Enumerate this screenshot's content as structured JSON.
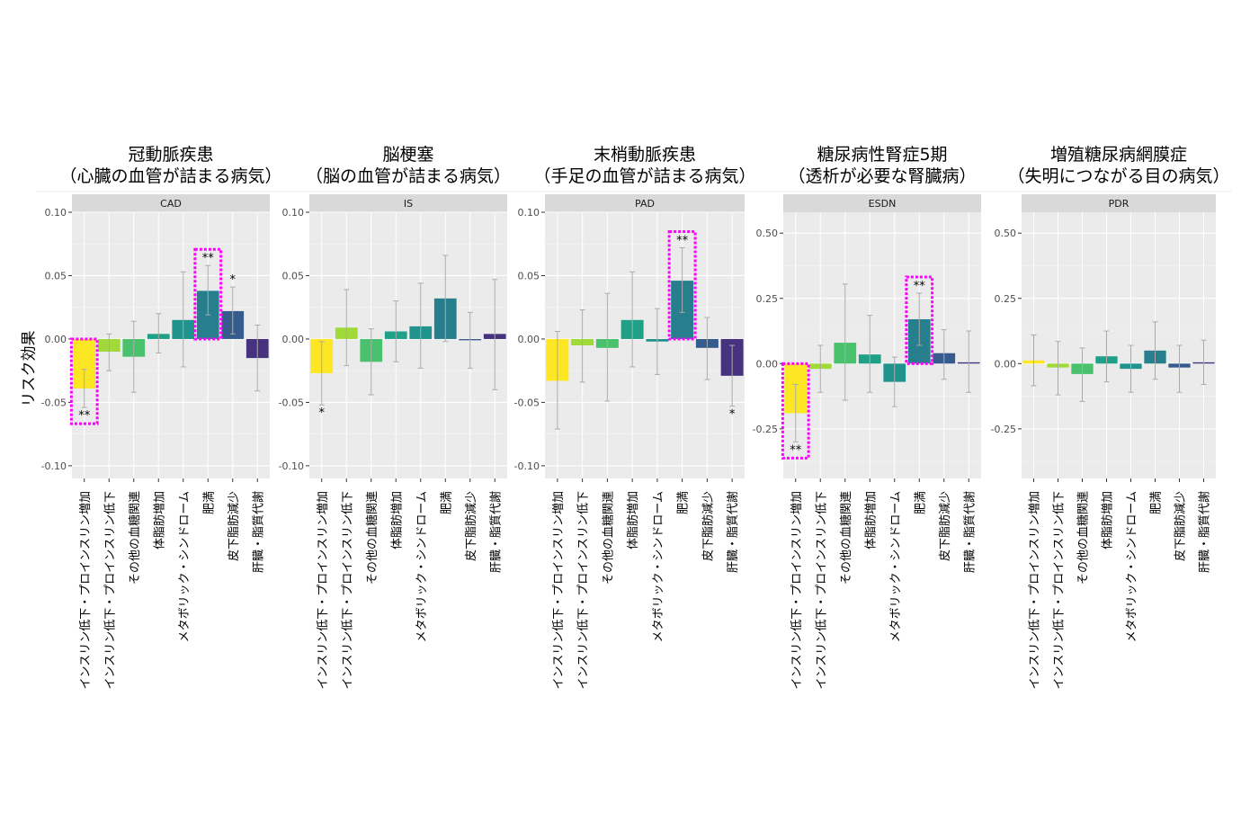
{
  "figure": {
    "ylabel": "リスク効果"
  },
  "colors": {
    "categories": [
      "#fde725",
      "#a0da39",
      "#4ac16d",
      "#1fa187",
      "#20938c",
      "#277f8e",
      "#365c8d",
      "#46327e",
      "#440154"
    ],
    "panel_bg": "#ebebeb",
    "strip_bg": "#d9d9d9",
    "highlight": "#ff00ff"
  },
  "chart_data": [
    {
      "type": "bar",
      "title": "冠動脈疾患",
      "subtitle": "（心臓の血管が詰まる病気）",
      "strip": "CAD",
      "categories": [
        "インスリン低下・プロインスリン増加",
        "インスリン低下・プロインスリン低下",
        "その他の血糖関連",
        "体脂肪増加",
        "メタボリック・シンドローム",
        "肥満",
        "皮下脂肪減少",
        "肝臓・脂質代謝"
      ],
      "values": [
        -0.039,
        -0.01,
        -0.014,
        0.004,
        0.015,
        0.038,
        0.022,
        -0.015
      ],
      "ci_low": [
        -0.054,
        -0.025,
        -0.042,
        -0.011,
        -0.022,
        0.019,
        0.004,
        -0.041
      ],
      "ci_high": [
        -0.024,
        0.004,
        0.014,
        0.02,
        0.053,
        0.058,
        0.041,
        0.011
      ],
      "significance": [
        "**",
        "",
        "",
        "",
        "",
        "**",
        "*",
        ""
      ],
      "highlighted": [
        0,
        5
      ],
      "ylim": [
        -0.11,
        0.1
      ],
      "yticks": [
        "-0.10",
        "-0.05",
        "0.00",
        "0.05",
        "0.10"
      ]
    },
    {
      "type": "bar",
      "title": "脳梗塞",
      "subtitle": "（脳の血管が詰まる病気）",
      "strip": "IS",
      "categories": [
        "インスリン低下・プロインスリン増加",
        "インスリン低下・プロインスリン低下",
        "その他の血糖関連",
        "体脂肪増加",
        "メタボリック・シンドローム",
        "肥満",
        "皮下脂肪減少",
        "肝臓・脂質代謝"
      ],
      "values": [
        -0.027,
        0.009,
        -0.018,
        0.006,
        0.01,
        0.032,
        -0.001,
        0.004
      ],
      "ci_low": [
        -0.052,
        -0.021,
        -0.044,
        -0.018,
        -0.023,
        -0.002,
        -0.023,
        -0.04
      ],
      "ci_high": [
        -0.002,
        0.039,
        0.008,
        0.03,
        0.044,
        0.066,
        0.021,
        0.047
      ],
      "significance": [
        "*",
        "",
        "",
        "",
        "",
        "",
        "",
        ""
      ],
      "highlighted": [],
      "ylim": [
        -0.11,
        0.1
      ],
      "yticks": [
        "-0.10",
        "-0.05",
        "0.00",
        "0.05",
        "0.10"
      ]
    },
    {
      "type": "bar",
      "title": "末梢動脈疾患",
      "subtitle": "（手足の血管が詰まる病気）",
      "strip": "PAD",
      "categories": [
        "インスリン低下・プロインスリン増加",
        "インスリン低下・プロインスリン低下",
        "その他の血糖関連",
        "体脂肪増加",
        "メタボリック・シンドローム",
        "肥満",
        "皮下脂肪減少",
        "肝臓・脂質代謝"
      ],
      "values": [
        -0.033,
        -0.005,
        -0.007,
        0.015,
        -0.002,
        0.046,
        -0.007,
        -0.029
      ],
      "ci_low": [
        -0.071,
        -0.034,
        -0.049,
        -0.022,
        -0.028,
        0.021,
        -0.032,
        -0.053
      ],
      "ci_high": [
        0.006,
        0.023,
        0.036,
        0.053,
        0.024,
        0.072,
        0.017,
        -0.005
      ],
      "significance": [
        "",
        "",
        "",
        "",
        "",
        "**",
        "",
        "*"
      ],
      "highlighted": [
        5
      ],
      "ylim": [
        -0.11,
        0.1
      ],
      "yticks": [
        "-0.10",
        "-0.05",
        "0.00",
        "0.05",
        "0.10"
      ]
    },
    {
      "type": "bar",
      "title": "糖尿病性腎症5期",
      "subtitle": "（透析が必要な腎臓病）",
      "strip": "ESDN",
      "categories": [
        "インスリン低下・プロインスリン増加",
        "インスリン低下・プロインスリン低下",
        "その他の血糖関連",
        "体脂肪増加",
        "メタボリック・シンドローム",
        "肥満",
        "皮下脂肪減少",
        "肝臓・脂質代謝"
      ],
      "values": [
        -0.19,
        -0.02,
        0.08,
        0.035,
        -0.07,
        0.17,
        0.04,
        0.005
      ],
      "ci_low": [
        -0.3,
        -0.11,
        -0.14,
        -0.11,
        -0.165,
        0.07,
        -0.06,
        -0.11
      ],
      "ci_high": [
        -0.08,
        0.07,
        0.305,
        0.185,
        0.025,
        0.27,
        0.13,
        0.125
      ],
      "significance": [
        "**",
        "",
        "",
        "",
        "",
        "**",
        "",
        ""
      ],
      "highlighted": [
        0,
        5
      ],
      "ylim": [
        -0.44,
        0.58
      ],
      "yticks": [
        "-0.25",
        "0.00",
        "0.25",
        "0.50"
      ]
    },
    {
      "type": "bar",
      "title": "増殖糖尿病網膜症",
      "subtitle": "（失明につながる目の病気）",
      "strip": "PDR",
      "categories": [
        "インスリン低下・プロインスリン増加",
        "インスリン低下・プロインスリン低下",
        "その他の血糖関連",
        "体脂肪増加",
        "メタボリック・シンドローム",
        "肥満",
        "皮下脂肪減少",
        "肝臓・脂質代謝"
      ],
      "values": [
        0.012,
        -0.015,
        -0.04,
        0.028,
        -0.02,
        0.05,
        -0.015,
        0.005
      ],
      "ci_low": [
        -0.085,
        -0.12,
        -0.145,
        -0.07,
        -0.11,
        -0.06,
        -0.11,
        -0.08
      ],
      "ci_high": [
        0.11,
        0.085,
        0.06,
        0.125,
        0.07,
        0.16,
        0.07,
        0.09
      ],
      "significance": [
        "",
        "",
        "",
        "",
        "",
        "",
        "",
        ""
      ],
      "highlighted": [],
      "ylim": [
        -0.44,
        0.58
      ],
      "yticks": [
        "-0.25",
        "0.00",
        "0.25",
        "0.50"
      ]
    }
  ]
}
